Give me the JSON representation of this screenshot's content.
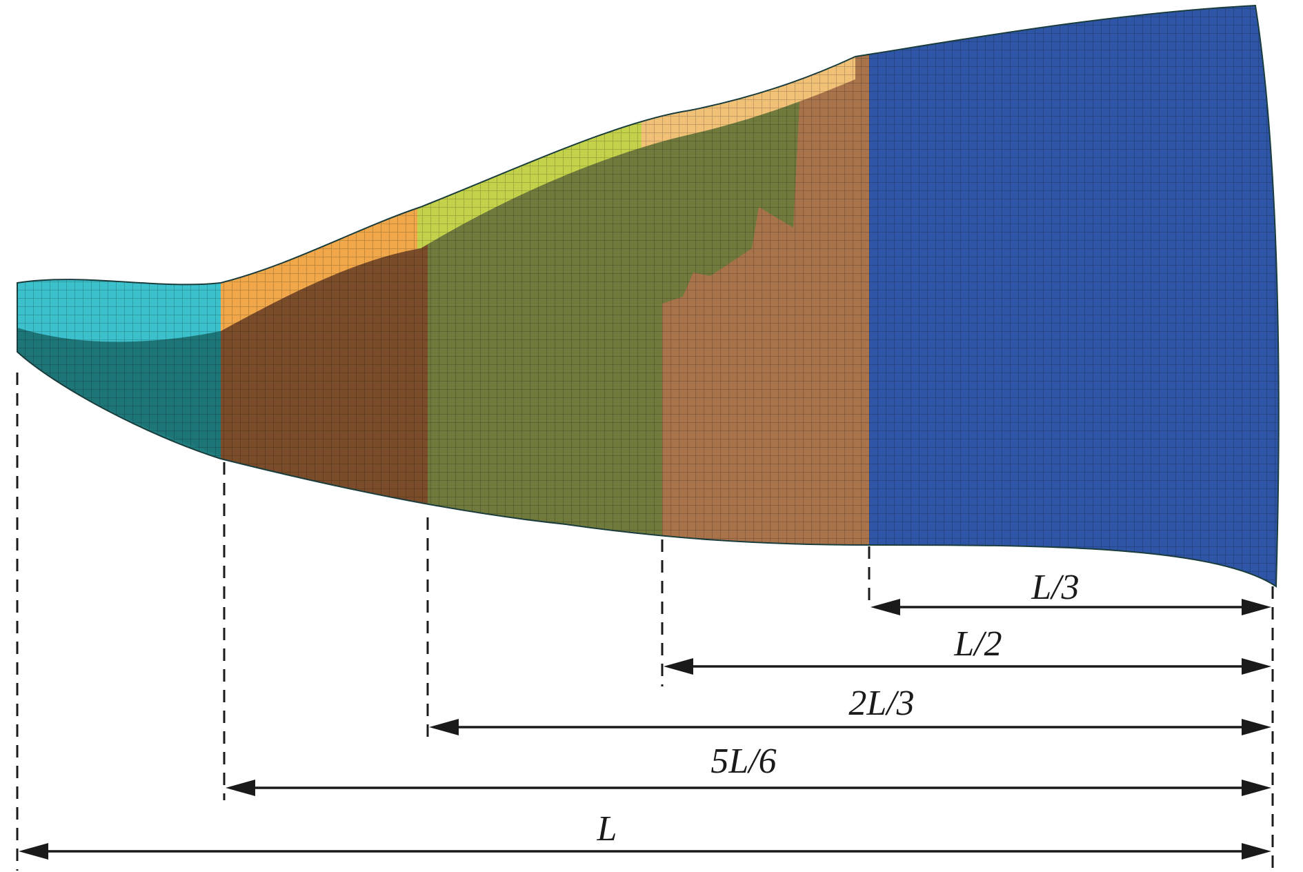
{
  "figure": {
    "dimensions": [
      {
        "id": "dim-L3",
        "label": "L/3"
      },
      {
        "id": "dim-L2",
        "label": "L/2"
      },
      {
        "id": "dim-2L3",
        "label": "2L/3"
      },
      {
        "id": "dim-5L6",
        "label": "5L/6"
      },
      {
        "id": "dim-L",
        "label": "L"
      }
    ],
    "regions": [
      {
        "id": "region-1",
        "color": "#1f7f80",
        "top_color": "#3cc1cc"
      },
      {
        "id": "region-2",
        "color": "#7a4c2a",
        "top_color": "#f0a84a"
      },
      {
        "id": "region-3",
        "color": "#6f7a3c",
        "top_color": "#c3d24a"
      },
      {
        "id": "region-4",
        "color": "#a8734a",
        "top_color": "#f1c177"
      },
      {
        "id": "region-5",
        "color": "#2f55a6",
        "top_color": "#3a62b8"
      }
    ],
    "dashed_line_color": "#1a1a1a",
    "arrow_color": "#1a1a1a"
  }
}
